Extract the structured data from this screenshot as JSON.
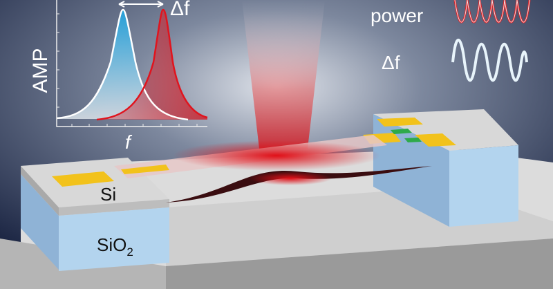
{
  "inset_plot": {
    "ylabel": "AMP",
    "xlabel": "f",
    "shift_label": "Δf",
    "colors": {
      "before": "#29a8e0",
      "after": "#e0141e"
    }
  },
  "signals": {
    "power_label": "power",
    "shift_label": "Δf",
    "colors": {
      "power": "#d9262c",
      "shift": "#e8f4fb"
    }
  },
  "device": {
    "si_label": "Si",
    "sio2_label": "SiO",
    "sio2_subscript": "2",
    "colors": {
      "electrode": "#f2c21b",
      "substrate": "#b3d4ee",
      "beam_field": "#d6141c"
    }
  }
}
